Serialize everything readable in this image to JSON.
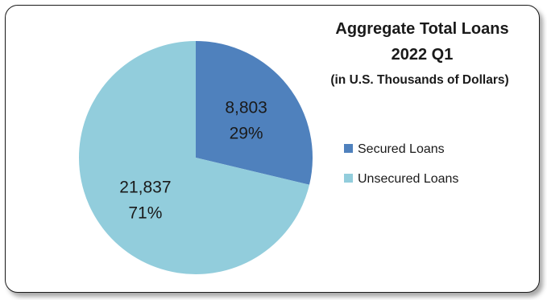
{
  "chart_data": {
    "type": "pie",
    "title": "Aggregate Total Loans",
    "subtitle": "2022 Q1",
    "unit_note": "(in U.S. Thousands of Dollars)",
    "categories": [
      "Secured Loans",
      "Unsecured Loans"
    ],
    "values": [
      8803,
      21837
    ],
    "value_labels": [
      "8,803",
      "21,837"
    ],
    "percent_labels": [
      "29%",
      "71%"
    ],
    "colors": [
      "#4f81bd",
      "#92cddc"
    ],
    "legend_position": "right",
    "start_angle": "12 o'clock, clockwise"
  }
}
